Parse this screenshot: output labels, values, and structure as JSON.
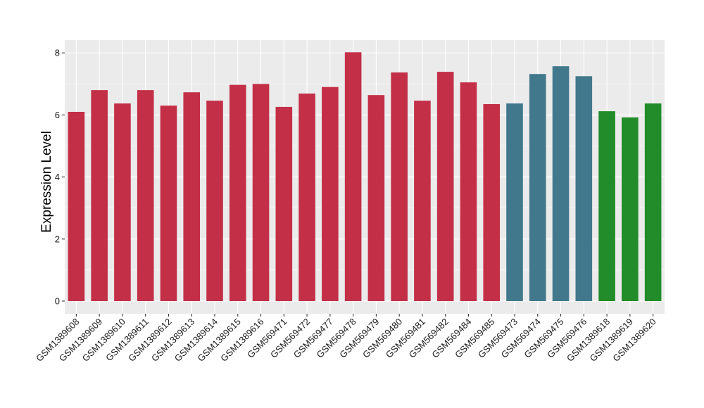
{
  "chart_data": {
    "type": "bar",
    "title": "",
    "xlabel": "",
    "ylabel": "Expression Level",
    "ylim": [
      0,
      8.4
    ],
    "yticks": [
      0,
      2,
      4,
      6,
      8
    ],
    "grid": true,
    "legend": "none",
    "categories": [
      "GSM1389608",
      "GSM1389609",
      "GSM1389610",
      "GSM1389611",
      "GSM1389612",
      "GSM1389613",
      "GSM1389614",
      "GSM1389615",
      "GSM1389616",
      "GSM569471",
      "GSM569472",
      "GSM569477",
      "GSM569478",
      "GSM569479",
      "GSM569480",
      "GSM569481",
      "GSM569482",
      "GSM569484",
      "GSM569485",
      "GSM569473",
      "GSM569474",
      "GSM569475",
      "GSM569476",
      "GSM1389618",
      "GSM1389619",
      "GSM1389620"
    ],
    "values": [
      6.1,
      6.8,
      6.37,
      6.8,
      6.3,
      6.73,
      6.46,
      6.97,
      7.0,
      6.26,
      6.69,
      6.9,
      8.02,
      6.64,
      7.37,
      6.46,
      7.39,
      7.05,
      6.35,
      6.37,
      7.32,
      7.57,
      7.25,
      6.12,
      5.92,
      6.37
    ],
    "bar_colors": [
      "#c32f47",
      "#c32f47",
      "#c32f47",
      "#c32f47",
      "#c32f47",
      "#c32f47",
      "#c32f47",
      "#c32f47",
      "#c32f47",
      "#c32f47",
      "#c32f47",
      "#c32f47",
      "#c32f47",
      "#c32f47",
      "#c32f47",
      "#c32f47",
      "#c32f47",
      "#c32f47",
      "#c32f47",
      "#42788b",
      "#42788b",
      "#42788b",
      "#42788b",
      "#218c29",
      "#218c29",
      "#218c29"
    ],
    "panel_background": "#ebebeb",
    "grid_color": "#ffffff"
  }
}
